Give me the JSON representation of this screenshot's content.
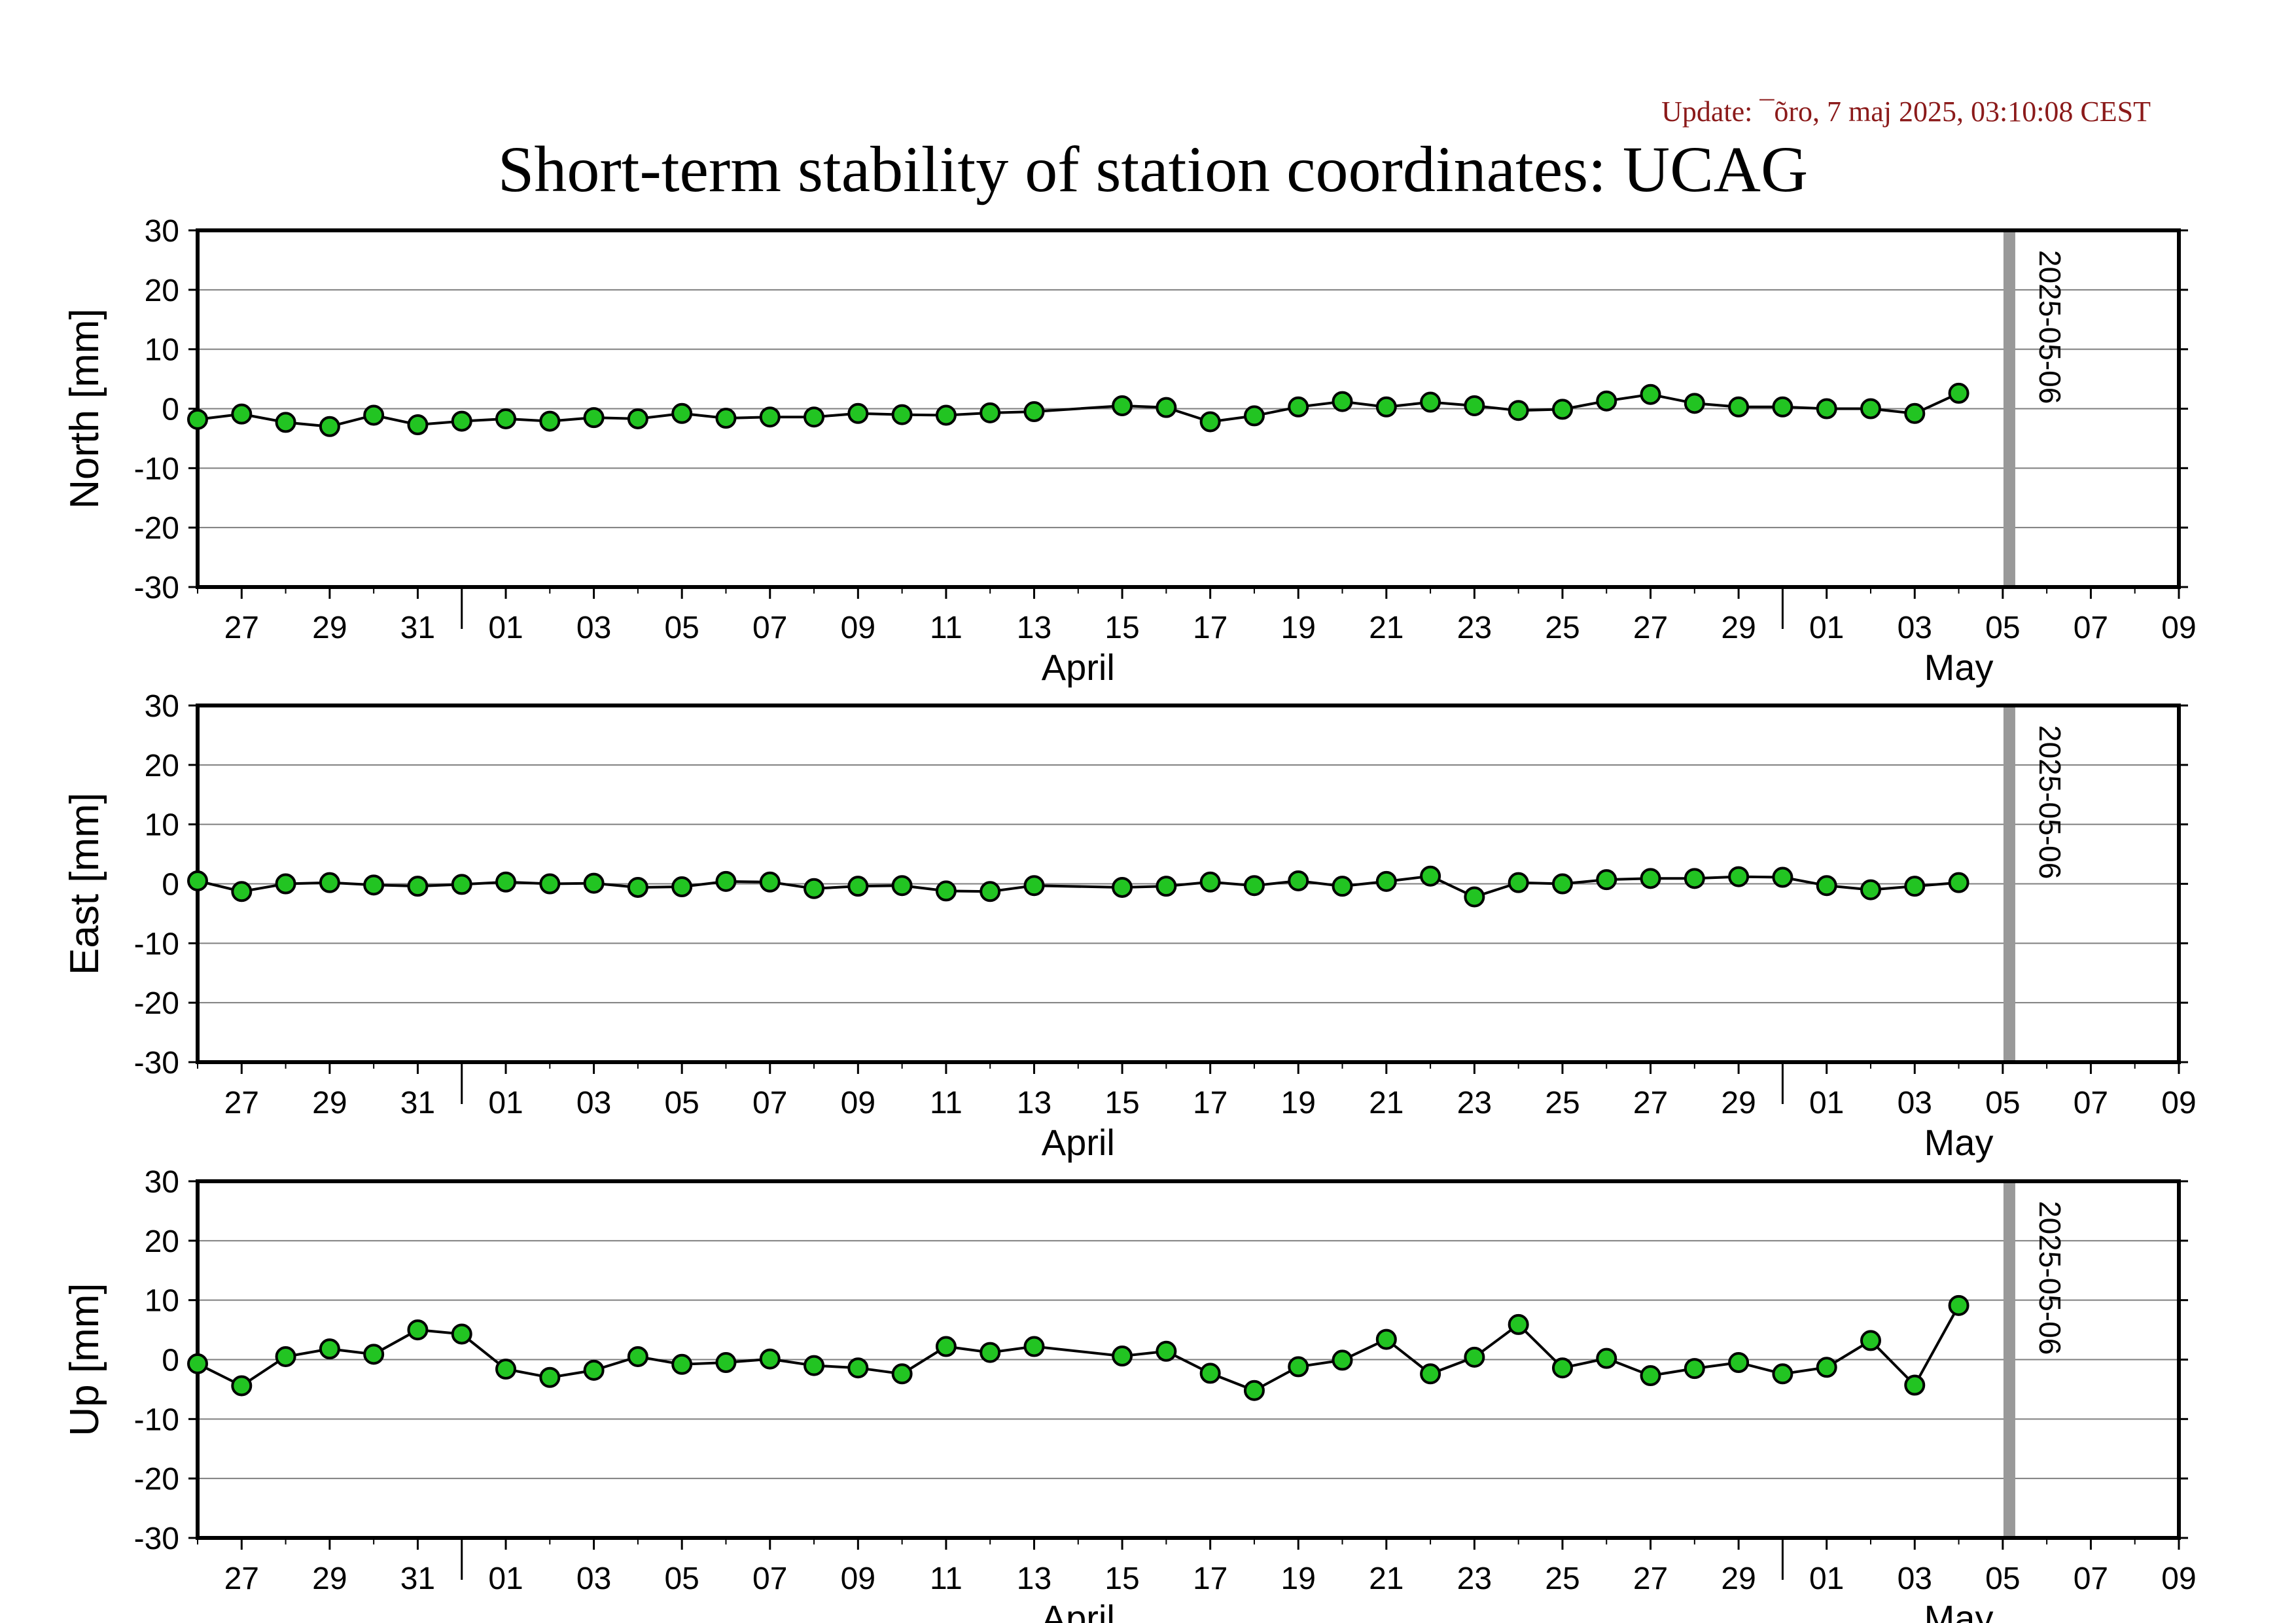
{
  "update_text": "Update: ¯õro, 7 maj 2025, 03:10:08 CEST",
  "chart_data": {
    "type": "scatter",
    "title": "Short-term stability of station coordinates: UCAG",
    "marker_label": "2025-05-06",
    "marker_date": "2025-05-06",
    "xlim": [
      "2025-03-26",
      "2025-05-10"
    ],
    "ylim": [
      -30,
      30
    ],
    "yticks": [
      -30,
      -20,
      -10,
      0,
      10,
      20,
      30
    ],
    "grid": "horizontal",
    "x_tick_labels": [
      "27",
      "29",
      "31",
      "01",
      "03",
      "05",
      "07",
      "09",
      "11",
      "13",
      "15",
      "17",
      "19",
      "21",
      "23",
      "25",
      "27",
      "29",
      "01",
      "03",
      "05",
      "07",
      "09"
    ],
    "month_labels": [
      "April",
      "May"
    ],
    "marker_color": "#22c422",
    "marker_line_color": "#999999",
    "dates": [
      "2025-03-26",
      "2025-03-27",
      "2025-03-28",
      "2025-03-29",
      "2025-03-30",
      "2025-03-31",
      "2025-04-01",
      "2025-04-02",
      "2025-04-03",
      "2025-04-04",
      "2025-04-05",
      "2025-04-06",
      "2025-04-07",
      "2025-04-08",
      "2025-04-09",
      "2025-04-10",
      "2025-04-11",
      "2025-04-12",
      "2025-04-13",
      "2025-04-14",
      "2025-04-16",
      "2025-04-17",
      "2025-04-18",
      "2025-04-19",
      "2025-04-20",
      "2025-04-21",
      "2025-04-22",
      "2025-04-23",
      "2025-04-24",
      "2025-04-25",
      "2025-04-26",
      "2025-04-27",
      "2025-04-28",
      "2025-04-29",
      "2025-04-30",
      "2025-05-01",
      "2025-05-02",
      "2025-05-03",
      "2025-05-04",
      "2025-05-05"
    ],
    "panels": [
      {
        "ylabel": "North [mm]",
        "values": [
          -1.8,
          -0.9,
          -2.3,
          -3.0,
          -1.1,
          -2.7,
          -2.1,
          -1.7,
          -2.1,
          -1.5,
          -1.7,
          -0.8,
          -1.6,
          -1.4,
          -1.4,
          -0.8,
          -1.0,
          -1.1,
          -0.7,
          -0.5,
          0.5,
          0.2,
          -2.2,
          -1.2,
          0.3,
          1.2,
          0.3,
          1.1,
          0.5,
          -0.3,
          -0.1,
          1.3,
          2.4,
          0.9,
          0.3,
          0.3,
          0.0,
          0.0,
          -0.8,
          2.6
        ]
      },
      {
        "ylabel": "East [mm]",
        "values": [
          0.5,
          -1.3,
          0.0,
          0.2,
          -0.2,
          -0.4,
          -0.1,
          0.3,
          0.0,
          0.1,
          -0.6,
          -0.5,
          0.4,
          0.3,
          -0.8,
          -0.4,
          -0.3,
          -1.2,
          -1.3,
          -0.3,
          -0.6,
          -0.4,
          0.3,
          -0.3,
          0.5,
          -0.4,
          0.4,
          1.3,
          -2.2,
          0.2,
          0.0,
          0.7,
          0.9,
          0.9,
          1.2,
          1.1,
          -0.3,
          -1.0,
          -0.4,
          0.2
        ]
      },
      {
        "ylabel": "Up [mm]",
        "values": [
          -0.7,
          -4.4,
          0.5,
          1.8,
          0.9,
          5.0,
          4.3,
          -1.6,
          -3.0,
          -1.8,
          0.5,
          -0.8,
          -0.5,
          0.1,
          -1.0,
          -1.4,
          -2.4,
          2.2,
          1.2,
          2.2,
          0.6,
          1.4,
          -2.3,
          -5.2,
          -1.2,
          -0.1,
          3.4,
          -2.4,
          0.4,
          5.9,
          -1.4,
          0.2,
          -2.7,
          -1.5,
          -0.5,
          -2.4,
          -1.3,
          3.2,
          -4.3,
          9.1
        ]
      }
    ]
  }
}
